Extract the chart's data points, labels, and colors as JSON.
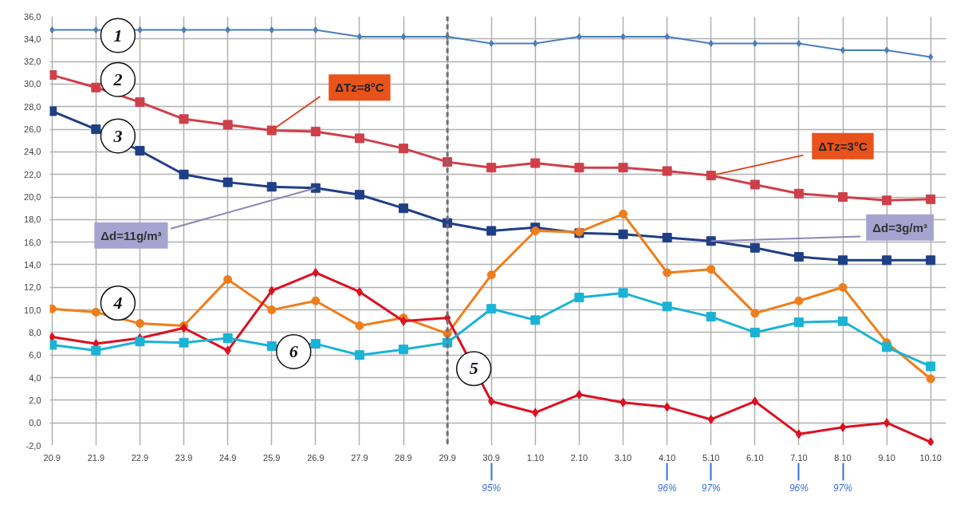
{
  "chart_data": {
    "type": "line",
    "categories": [
      "20.9",
      "21.9",
      "22.9",
      "23.9",
      "24.9",
      "25.9",
      "26.9",
      "27.9",
      "28.9",
      "29.9",
      "30.9",
      "1.10",
      "2.10",
      "3.10",
      "4.10",
      "5.10",
      "6.10",
      "7.10",
      "8.10",
      "9.10",
      "10.10"
    ],
    "series": [
      {
        "color": "#4a7ebb",
        "marker": "diamond",
        "values": [
          34.8,
          34.8,
          34.8,
          34.8,
          34.8,
          34.8,
          34.8,
          34.2,
          34.2,
          34.2,
          33.6,
          33.6,
          34.2,
          34.2,
          34.2,
          33.6,
          33.6,
          33.6,
          33.0,
          33.0,
          32.4
        ]
      },
      {
        "color": "#cf3f4a",
        "marker": "square",
        "values": [
          30.8,
          29.7,
          28.4,
          26.9,
          26.4,
          25.9,
          25.8,
          25.2,
          24.3,
          23.1,
          22.6,
          23.0,
          22.6,
          22.6,
          22.3,
          21.9,
          21.1,
          20.3,
          20.0,
          19.7,
          19.8
        ]
      },
      {
        "color": "#1f3f85",
        "marker": "square",
        "values": [
          27.6,
          26.0,
          24.1,
          22.0,
          21.3,
          20.9,
          20.8,
          20.2,
          19.0,
          17.7,
          17.0,
          17.3,
          16.8,
          16.7,
          16.4,
          16.1,
          15.5,
          14.7,
          14.4,
          14.4,
          14.4
        ]
      },
      {
        "color": "#ef7d1a",
        "marker": "circle",
        "values": [
          10.1,
          9.8,
          8.8,
          8.6,
          12.7,
          10.0,
          10.8,
          8.6,
          9.3,
          7.9,
          13.1,
          17.0,
          16.9,
          18.5,
          13.3,
          13.6,
          9.7,
          10.8,
          12.0,
          7.1,
          3.9
        ]
      },
      {
        "color": "#dc1020",
        "marker": "diamond",
        "values": [
          7.6,
          7.0,
          7.5,
          8.4,
          6.4,
          11.7,
          13.3,
          11.6,
          9.0,
          9.3,
          1.9,
          0.9,
          2.5,
          1.8,
          1.4,
          0.3,
          1.9,
          -1.0,
          -0.4,
          0.0,
          -1.7
        ]
      },
      {
        "color": "#1ab3d6",
        "marker": "square",
        "values": [
          6.9,
          6.4,
          7.2,
          7.1,
          7.5,
          6.8,
          7.0,
          6.0,
          6.5,
          7.1,
          10.1,
          9.1,
          11.1,
          11.5,
          10.3,
          9.4,
          8.0,
          8.9,
          9.0,
          6.7,
          5.0
        ]
      }
    ],
    "ylim": [
      -2,
      36
    ],
    "yticks": [
      {
        "value": -2,
        "label": "-2,0"
      },
      {
        "value": 0,
        "label": "0,0"
      },
      {
        "value": 2,
        "label": "2,0"
      },
      {
        "value": 4,
        "label": "4,0"
      },
      {
        "value": 6,
        "label": "6,0"
      },
      {
        "value": 8,
        "label": "8,0"
      },
      {
        "value": 10,
        "label": "10,0"
      },
      {
        "value": 12,
        "label": "12,0"
      },
      {
        "value": 14,
        "label": "14,0"
      },
      {
        "value": 16,
        "label": "16,0"
      },
      {
        "value": 18,
        "label": "18,0"
      },
      {
        "value": 20,
        "label": "20,0"
      },
      {
        "value": 22,
        "label": "22,0"
      },
      {
        "value": 24,
        "label": "24,0"
      },
      {
        "value": 26,
        "label": "26,0"
      },
      {
        "value": 28,
        "label": "28,0"
      },
      {
        "value": 30,
        "label": "30,0"
      },
      {
        "value": 32,
        "label": "32,0"
      },
      {
        "value": 34,
        "label": "34,0"
      },
      {
        "value": 36,
        "label": "36,0"
      }
    ],
    "grid": true,
    "ref_lines": [
      {
        "axis": "x",
        "value": "29.9",
        "color": "#707070",
        "line_style": "dashed"
      }
    ],
    "annotations": [
      "1",
      "2",
      "3",
      "4",
      "6",
      "5",
      {
        "text": "ΔTz=8°C",
        "x": "25.9",
        "y": 25.9
      },
      {
        "text": "ΔTz=3°C",
        "x": "5.10",
        "y": 21.9
      },
      {
        "text": "Δd=11g/m³",
        "x": "26.9",
        "y": 20.8
      },
      {
        "text": "Δd=3g/m³",
        "x": "5.10",
        "y": 16.1
      },
      "95%",
      "96%",
      "97%",
      "96%",
      "97%"
    ]
  }
}
